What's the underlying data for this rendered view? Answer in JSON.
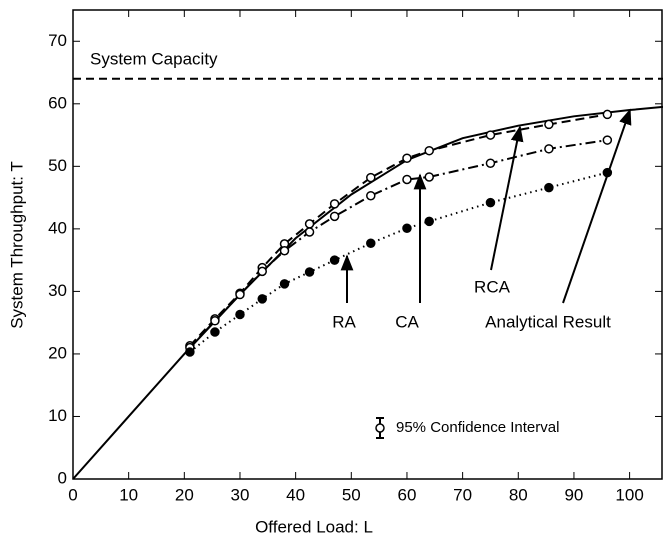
{
  "chart_data": {
    "type": "line",
    "x_label": "Offered Load: L",
    "y_label": "System Throughput: T",
    "xlim": [
      0,
      106
    ],
    "ylim": [
      0,
      75
    ],
    "xticks": [
      0,
      10,
      20,
      30,
      40,
      50,
      60,
      70,
      80,
      90,
      100
    ],
    "yticks": [
      0,
      10,
      20,
      30,
      40,
      50,
      60,
      70
    ],
    "reference_line": {
      "label": "System Capacity",
      "value": 64
    },
    "legend_note": "95% Confidence Interval",
    "series": [
      {
        "name": "Analytical Result",
        "color": "#000000",
        "dash": "solid",
        "marker": "none",
        "x": [
          0,
          10,
          20,
          30,
          40,
          50,
          60,
          70,
          80,
          90,
          100,
          106
        ],
        "values": [
          0,
          10,
          20,
          29.5,
          38.5,
          45.5,
          51,
          54.5,
          56.5,
          58,
          59,
          59.5
        ]
      },
      {
        "name": "RCA",
        "color": "#000000",
        "dash": "dashed",
        "marker": "open",
        "x": [
          21,
          25.5,
          30,
          34,
          38,
          42.5,
          47,
          53.5,
          60,
          64,
          75,
          85.5,
          96
        ],
        "values": [
          21.3,
          25.6,
          29.7,
          33.8,
          37.6,
          40.8,
          44,
          48.2,
          51.3,
          52.5,
          55,
          56.7,
          58.3
        ]
      },
      {
        "name": "CA",
        "color": "#000000",
        "dash": "dashdot",
        "marker": "open",
        "x": [
          21,
          25.5,
          30,
          34,
          38,
          42.5,
          47,
          53.5,
          60,
          64,
          75,
          85.5,
          96
        ],
        "values": [
          21,
          25.3,
          29.5,
          33.2,
          36.5,
          39.5,
          42,
          45.3,
          47.9,
          48.3,
          50.5,
          52.8,
          54.2
        ]
      },
      {
        "name": "RA",
        "color": "#000000",
        "dash": "dotted",
        "marker": "filled",
        "x": [
          21,
          25.5,
          30,
          34,
          38,
          42.5,
          47,
          53.5,
          60,
          64,
          75,
          85.5,
          96
        ],
        "values": [
          20.3,
          23.5,
          26.3,
          28.8,
          31.2,
          33.1,
          35,
          37.7,
          40.1,
          41.2,
          44.2,
          46.6,
          49
        ]
      }
    ]
  }
}
